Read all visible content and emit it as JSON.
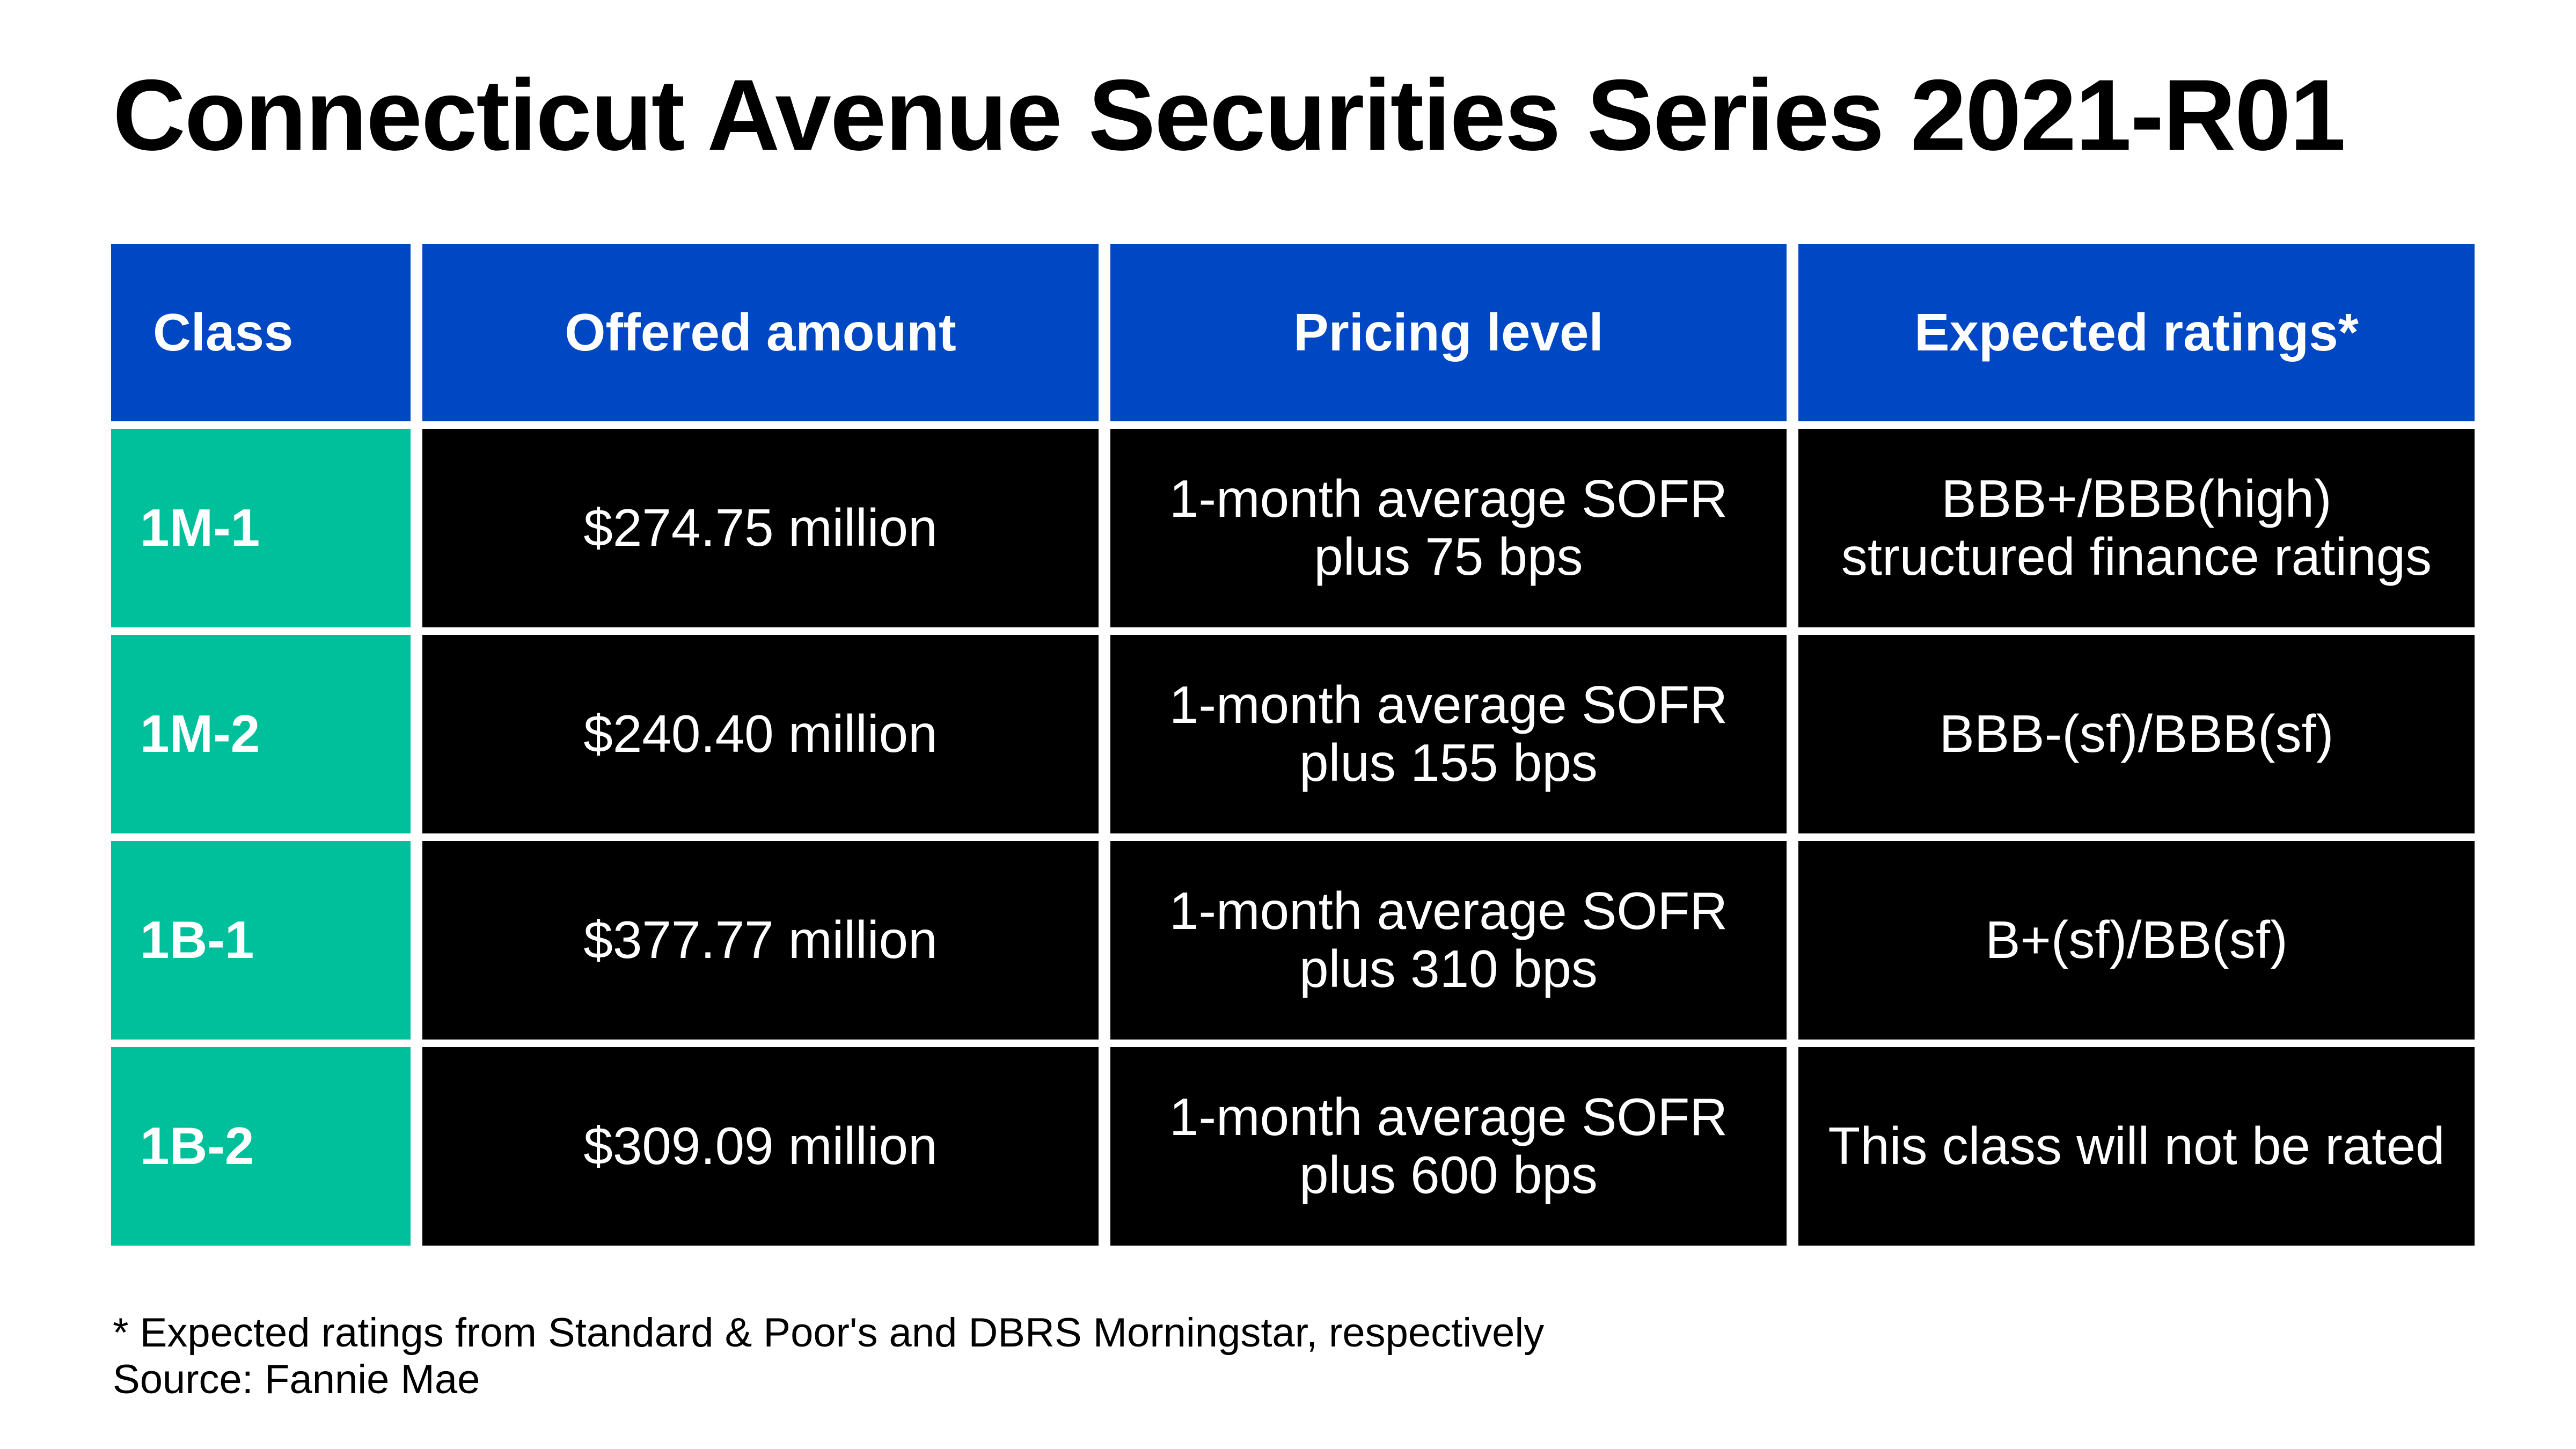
{
  "title": "Connecticut Avenue Securities Series 2021-R01",
  "chart_data": {
    "type": "table",
    "columns": [
      "Class",
      "Offered amount",
      "Pricing level",
      "Expected ratings*"
    ],
    "rows": [
      [
        "1M-1",
        "$274.75 million",
        "1-month average SOFR plus 75 bps",
        "BBB+/BBB(high) structured finance ratings"
      ],
      [
        "1M-2",
        "$240.40 million",
        "1-month average SOFR plus 155 bps",
        "BBB-(sf)/BBB(sf)"
      ],
      [
        "1B-1",
        "$377.77 million",
        "1-month average SOFR plus 310 bps",
        "B+(sf)/BB(sf)"
      ],
      [
        "1B-2",
        "$309.09 million",
        "1-month average SOFR plus 600 bps",
        "This class will not be rated"
      ]
    ]
  },
  "footnote": "* Expected ratings from Standard & Poor's and DBRS Morningstar, respectively",
  "source": "Source: Fannie Mae",
  "colors": {
    "header_bg": "#0047c4",
    "class_bg": "#00bf9b",
    "body_bg": "#000000",
    "text_light": "#ffffff"
  }
}
